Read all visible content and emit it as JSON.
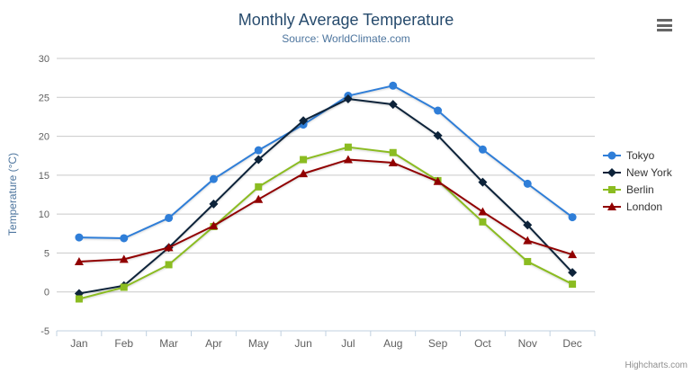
{
  "header": {
    "title": "Monthly Average Temperature",
    "subtitle": "Source: WorldClimate.com"
  },
  "y_axis": {
    "title": "Temperature (°C)"
  },
  "credits": "Highcharts.com",
  "icons": {
    "menu": "hamburger-icon"
  },
  "colors": {
    "title": "#274b6d",
    "subtitle": "#4d759e",
    "axis_title": "#4d759e",
    "axis_labels": "#606060",
    "gridline": "#c9c9c9",
    "axis_line": "#c0d0e0",
    "legend_text": "#333333",
    "credits": "#8f8f8f"
  },
  "chart_data": {
    "type": "line",
    "title": "Monthly Average Temperature",
    "subtitle": "Source: WorldClimate.com",
    "xlabel": "",
    "ylabel": "Temperature (°C)",
    "categories": [
      "Jan",
      "Feb",
      "Mar",
      "Apr",
      "May",
      "Jun",
      "Jul",
      "Aug",
      "Sep",
      "Oct",
      "Nov",
      "Dec"
    ],
    "ylim": [
      -5,
      30
    ],
    "ytick_values": [
      30,
      25,
      20,
      15,
      10,
      5,
      0,
      -5
    ],
    "grid": true,
    "legend_position": "right",
    "series": [
      {
        "name": "Tokyo",
        "color": "#2f7ed8",
        "marker": "circle",
        "values": [
          7.0,
          6.9,
          9.5,
          14.5,
          18.2,
          21.5,
          25.2,
          26.5,
          23.3,
          18.3,
          13.9,
          9.6
        ]
      },
      {
        "name": "New York",
        "color": "#0d233a",
        "marker": "diamond",
        "values": [
          -0.2,
          0.8,
          5.7,
          11.3,
          17.0,
          22.0,
          24.8,
          24.1,
          20.1,
          14.1,
          8.6,
          2.5
        ]
      },
      {
        "name": "Berlin",
        "color": "#8bbc21",
        "marker": "square",
        "values": [
          -0.9,
          0.6,
          3.5,
          8.4,
          13.5,
          17.0,
          18.6,
          17.9,
          14.3,
          9.0,
          3.9,
          1.0
        ]
      },
      {
        "name": "London",
        "color": "#910000",
        "marker": "triangle",
        "values": [
          3.9,
          4.2,
          5.7,
          8.5,
          11.9,
          15.2,
          17.0,
          16.6,
          14.2,
          10.3,
          6.6,
          4.8
        ]
      }
    ]
  }
}
